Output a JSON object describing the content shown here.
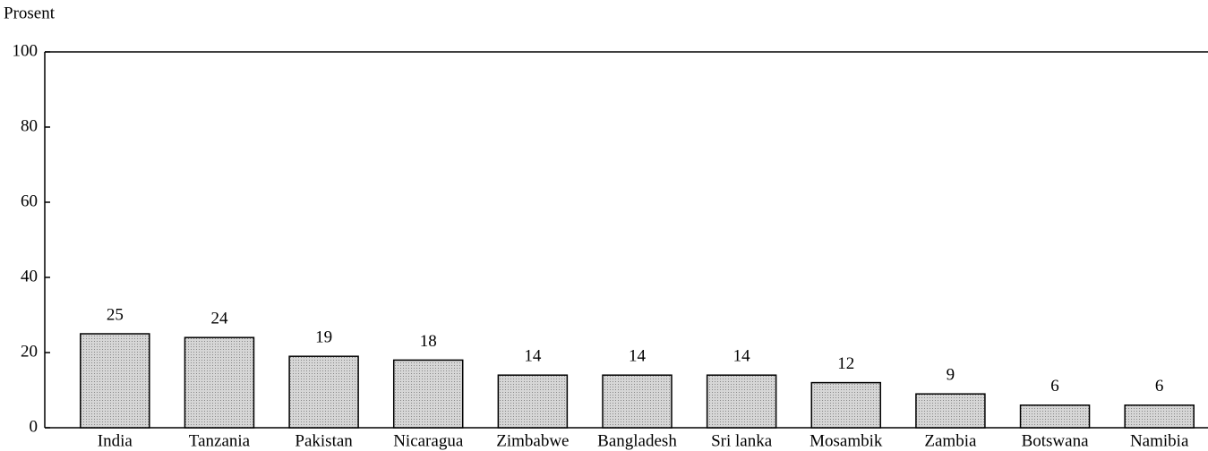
{
  "chart_data": {
    "type": "bar",
    "y_label": "Prosent",
    "categories": [
      "India",
      "Tanzania",
      "Pakistan",
      "Nicaragua",
      "Zimbabwe",
      "Bangladesh",
      "Sri lanka",
      "Mosambik",
      "Zambia",
      "Botswana",
      "Namibia"
    ],
    "values": [
      25,
      24,
      19,
      18,
      14,
      14,
      14,
      12,
      9,
      6,
      6
    ],
    "color": "#c9c9c9",
    "ylim": [
      0,
      100
    ],
    "yticks": [
      0,
      20,
      40,
      60,
      80,
      100
    ],
    "grid": false
  }
}
